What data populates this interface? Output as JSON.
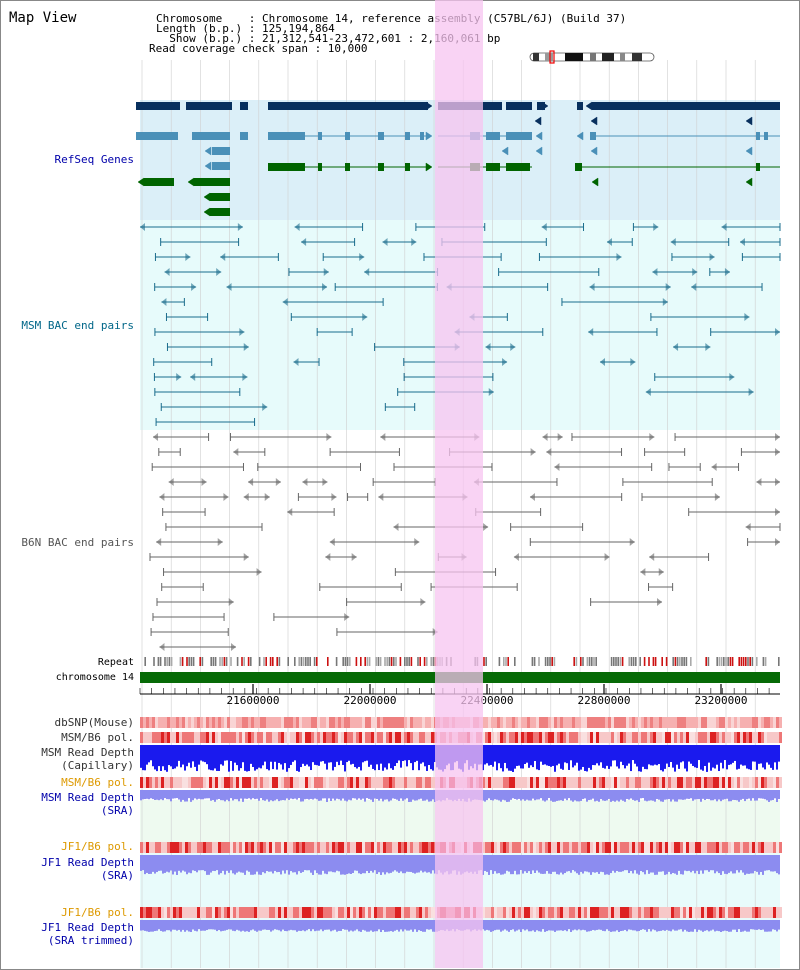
{
  "title": "Map View",
  "header": {
    "chromosome_line": "Chromosome    : Chromosome 14, reference assembly (C57BL/6J) (Build 37)",
    "length_line": "Length (b.p.) : 125,194,864",
    "show_line": "  Show (b.p.) : 21,312,541-23,472,601 : 2,160,061 bp",
    "span_line": "Read coverage check span : 10,000"
  },
  "tracks": {
    "refseq": {
      "label": "RefSeq Genes",
      "color": "#0000aa"
    },
    "msm_bac": {
      "label": "MSM BAC end pairs",
      "color": "#006688"
    },
    "b6n_bac": {
      "label": "B6N BAC end pairs",
      "color": "#555555"
    },
    "repeat": {
      "label": "Repeat"
    },
    "chromosome": {
      "label": "chromosome 14"
    },
    "dbsnp": {
      "label": "dbSNP(Mouse)"
    },
    "msm_b6_pol_1": {
      "label": "MSM/B6 pol."
    },
    "msm_read_depth_cap": {
      "line1": "MSM Read Depth",
      "line2": "(Capillary)"
    },
    "msm_b6_pol_2": {
      "label": "MSM/B6 pol.",
      "color": "#dd9900"
    },
    "msm_read_depth_sra": {
      "line1": "MSM Read Depth",
      "line2": "(SRA)"
    },
    "jf1_b6_pol_1": {
      "label": "JF1/B6 pol.",
      "color": "#dd9900"
    },
    "jf1_read_depth_sra": {
      "line1": "JF1 Read Depth",
      "line2": "(SRA)"
    },
    "jf1_b6_pol_2": {
      "label": "JF1/B6 pol.",
      "color": "#dd9900"
    },
    "jf1_read_depth_trim": {
      "line1": "JF1 Read Depth",
      "line2": "(SRA trimmed)"
    }
  },
  "axis": {
    "ticks": [
      "21600000",
      "22000000",
      "22400000",
      "22800000",
      "23200000"
    ]
  },
  "colors": {
    "refseq_bg": "#dbeff8",
    "msm_bg": "#e7fbfb",
    "highlight": "#f7c4f0",
    "gene_navy": "#08305e",
    "gene_teal": "#4a90b8",
    "gene_green": "#006400",
    "depth_blue": "#1a1aee",
    "depth_lavender": "#8c8cf0",
    "pol_red": "#e05050"
  }
}
